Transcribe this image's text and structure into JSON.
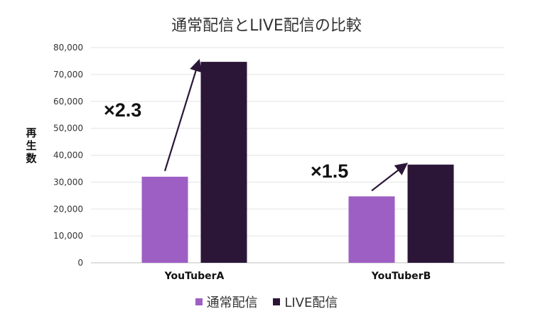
{
  "chart_data": {
    "type": "bar",
    "title": "通常配信とLIVE配信の比較",
    "ylabel": "再生数",
    "xlabel": "",
    "categories": [
      "YouTuberA",
      "YouTuberB"
    ],
    "series": [
      {
        "name": "通常配信",
        "values": [
          32000,
          24700
        ],
        "color": "#9e5fc4"
      },
      {
        "name": "LIVE配信",
        "values": [
          74700,
          36500
        ],
        "color": "#2b1638"
      }
    ],
    "ylim": [
      0,
      80000
    ],
    "yticks": [
      "0",
      "10,000",
      "20,000",
      "30,000",
      "40,000",
      "50,000",
      "60,000",
      "70,000",
      "80,000"
    ],
    "grid": true,
    "legend_position": "bottom",
    "annotations": [
      {
        "text": "×2.3",
        "category": "YouTuberA"
      },
      {
        "text": "×1.5",
        "category": "YouTuberB"
      }
    ]
  }
}
